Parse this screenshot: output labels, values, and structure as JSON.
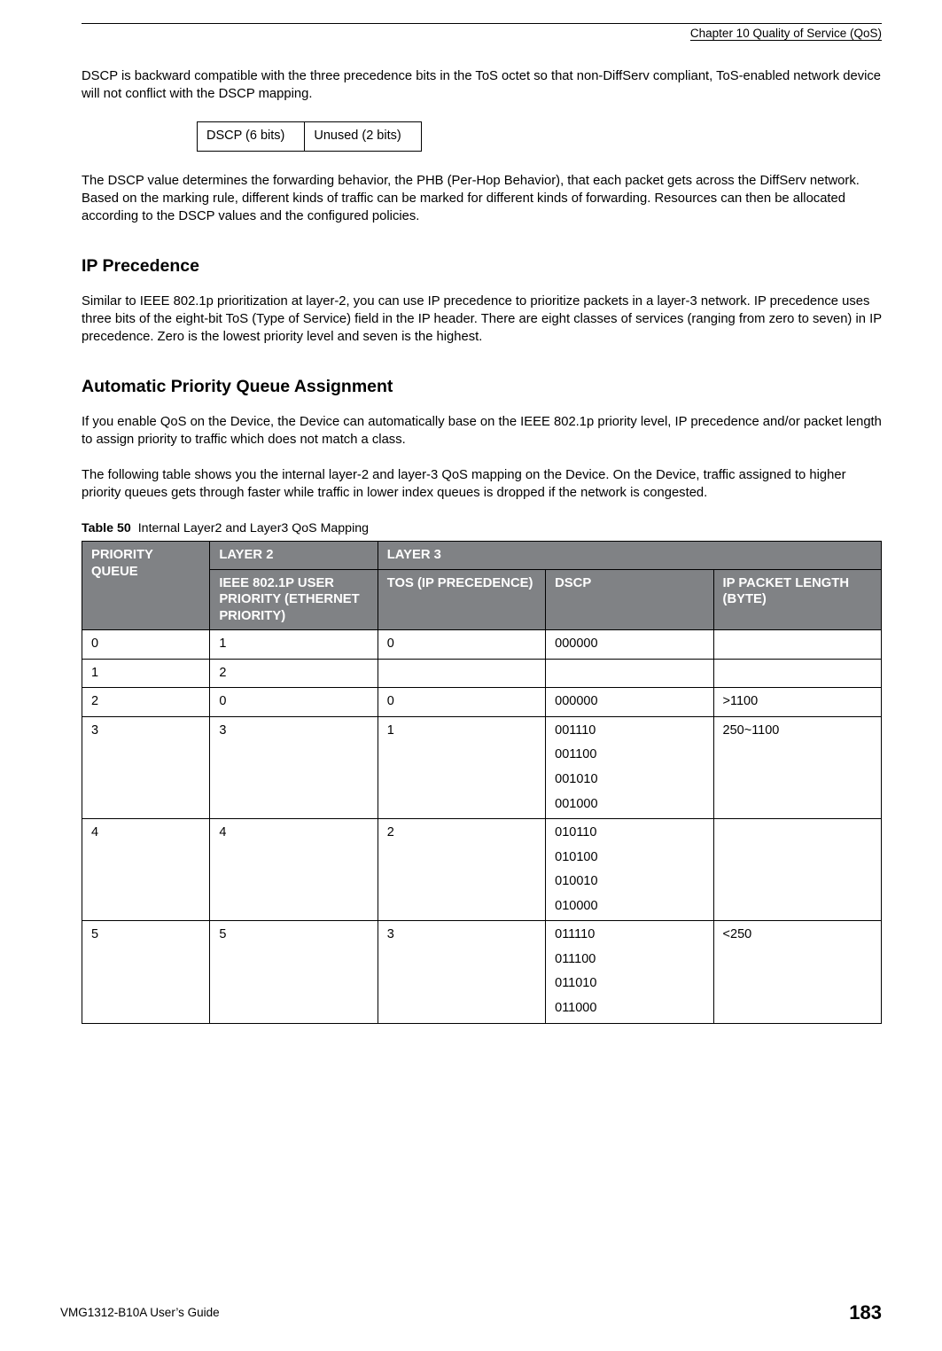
{
  "header": {
    "chapter": "Chapter 10 Quality of Service (QoS)"
  },
  "para1": "DSCP is backward compatible with the three precedence bits in the ToS octet so that non-DiffServ compliant, ToS-enabled network device will not conflict with the DSCP mapping.",
  "bits_table": {
    "cells": [
      "DSCP (6 bits)",
      "Unused (2 bits)"
    ]
  },
  "para2": "The DSCP value determines the forwarding behavior, the PHB (Per-Hop Behavior), that each packet gets across the DiffServ network. Based on the marking rule, different kinds of traffic can be marked for different kinds of forwarding. Resources can then be allocated according to the DSCP values and the configured policies.",
  "section_ip_precedence": {
    "title": "IP Precedence",
    "para": "Similar to IEEE 802.1p prioritization at layer-2, you can use IP precedence to prioritize packets in a layer-3 network. IP precedence uses three bits of the eight-bit ToS (Type of Service) field in the IP header. There are eight classes of services (ranging from zero to seven) in IP precedence. Zero is the lowest priority level and seven is the highest."
  },
  "section_auto_pq": {
    "title": "Automatic Priority Queue Assignment",
    "para1": "If you enable QoS on the Device, the Device can automatically base on the IEEE 802.1p priority level, IP precedence and/or packet length to assign priority to traffic which does not match a class.",
    "para2": "The following table shows you the internal layer-2 and layer-3 QoS mapping on the Device. On the Device, traffic assigned to higher priority queues gets through faster while traffic in lower index queues is dropped if the network is congested."
  },
  "table50": {
    "caption_label": "Table 50",
    "caption_text": "Internal Layer2 and Layer3 QoS Mapping",
    "head": {
      "pq": "PRIORITY QUEUE",
      "l2": "LAYER 2",
      "l3": "LAYER 3",
      "ieee": "IEEE 802.1P USER PRIORITY (ETHERNET PRIORITY)",
      "tos": "TOS (IP PRECEDENCE)",
      "dscp": "DSCP",
      "len": "IP PACKET LENGTH (BYTE)"
    },
    "rows": [
      {
        "pq": "0",
        "ieee": "1",
        "tos": "0",
        "dscp": [
          "000000"
        ],
        "len": ""
      },
      {
        "pq": "1",
        "ieee": "2",
        "tos": "",
        "dscp": [],
        "len": ""
      },
      {
        "pq": "2",
        "ieee": "0",
        "tos": "0",
        "dscp": [
          "000000"
        ],
        "len": ">1100"
      },
      {
        "pq": "3",
        "ieee": "3",
        "tos": "1",
        "dscp": [
          "001110",
          "001100",
          "001010",
          "001000"
        ],
        "len": "250~1100"
      },
      {
        "pq": "4",
        "ieee": "4",
        "tos": "2",
        "dscp": [
          "010110",
          "010100",
          "010010",
          "010000"
        ],
        "len": ""
      },
      {
        "pq": "5",
        "ieee": "5",
        "tos": "3",
        "dscp": [
          "011110",
          "011100",
          "011010",
          "011000"
        ],
        "len": "<250"
      }
    ],
    "header_bg": "#808285",
    "header_fg": "#ffffff"
  },
  "footer": {
    "guide": "VMG1312-B10A User’s Guide",
    "page": "183"
  }
}
